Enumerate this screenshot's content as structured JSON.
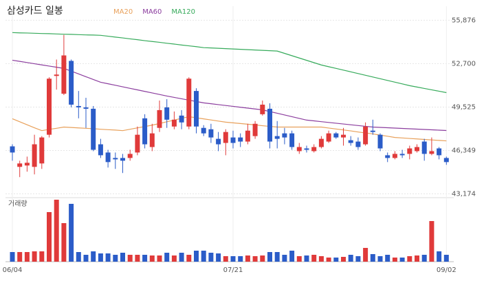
{
  "chart_data": {
    "type": "candlestick",
    "title": "삼성카드 일봉",
    "volume_label": "거래량",
    "up_color": "#e03a3a",
    "down_color": "#2b5cc8",
    "categories": [
      "06/04",
      null,
      null,
      null,
      null,
      null,
      null,
      null,
      null,
      null,
      null,
      null,
      null,
      null,
      null,
      null,
      null,
      null,
      null,
      null,
      null,
      null,
      null,
      null,
      null,
      null,
      null,
      null,
      null,
      null,
      "07/21",
      null,
      null,
      null,
      null,
      null,
      null,
      null,
      null,
      null,
      null,
      null,
      null,
      null,
      null,
      null,
      null,
      null,
      null,
      null,
      null,
      null,
      null,
      null,
      null,
      null,
      null,
      null,
      null,
      "09/02"
    ],
    "open": [
      46650,
      45150,
      45250,
      45150,
      45400,
      47500,
      51800,
      50500,
      52900,
      49600,
      49500,
      49400,
      46800,
      46200,
      45800,
      45800,
      45800,
      46200,
      48700,
      46600,
      48000,
      49500,
      48100,
      48900,
      48100,
      50700,
      48000,
      47900,
      47200,
      46900,
      47300,
      47300,
      47000,
      47400,
      49000,
      49400,
      47400,
      47600,
      47600,
      46300,
      46500,
      46300,
      46600,
      47000,
      47600,
      47300,
      47100,
      47000,
      46800,
      47800,
      47500,
      46000,
      45800,
      46100,
      46100,
      46300,
      47000,
      46100,
      46500,
      45800
    ],
    "high": [
      46800,
      45600,
      45900,
      47500,
      47400,
      51700,
      53000,
      54800,
      53000,
      50700,
      50200,
      49600,
      47200,
      46400,
      46200,
      46100,
      46400,
      48100,
      49000,
      48300,
      50000,
      50100,
      49200,
      49300,
      51700,
      50900,
      48200,
      48300,
      47700,
      47900,
      47800,
      47600,
      48300,
      48500,
      50000,
      49800,
      48500,
      48000,
      47800,
      46900,
      46700,
      46800,
      47400,
      47800,
      47700,
      48000,
      47400,
      47300,
      48400,
      48600,
      47600,
      46200,
      46300,
      46400,
      46700,
      46800,
      47200,
      47300,
      46600,
      45900
    ],
    "low": [
      45600,
      44400,
      44800,
      44600,
      45000,
      47300,
      50800,
      50400,
      49500,
      48700,
      48000,
      46300,
      45800,
      45100,
      45000,
      44700,
      45600,
      46000,
      46500,
      46300,
      47700,
      48000,
      47900,
      47900,
      47900,
      47600,
      47400,
      46900,
      46300,
      46000,
      46500,
      46600,
      46800,
      47200,
      48900,
      46500,
      46500,
      46800,
      46400,
      46100,
      46200,
      46200,
      46500,
      46900,
      47200,
      46700,
      46700,
      46400,
      46700,
      47500,
      46300,
      45500,
      45700,
      45800,
      45700,
      46200,
      45600,
      46000,
      45700,
      45300
    ],
    "close": [
      46200,
      45400,
      45450,
      46800,
      47300,
      51600,
      51900,
      53300,
      49700,
      49500,
      49400,
      46400,
      46000,
      45500,
      45700,
      45600,
      46100,
      47500,
      46800,
      47600,
      49300,
      48600,
      48600,
      48400,
      51600,
      48100,
      47600,
      47300,
      46800,
      47700,
      46900,
      47000,
      47800,
      48300,
      49700,
      47000,
      47200,
      47300,
      46600,
      46600,
      46400,
      46600,
      47200,
      47600,
      47300,
      47500,
      46900,
      46600,
      48100,
      47700,
      46500,
      45800,
      46100,
      46000,
      46500,
      46600,
      46100,
      46300,
      46000,
      45500
    ],
    "volume": [
      14,
      14,
      14,
      15,
      15,
      72,
      90,
      56,
      84,
      14,
      10,
      15,
      12,
      12,
      10,
      13,
      10,
      10,
      10,
      9,
      9,
      13,
      9,
      13,
      10,
      16,
      16,
      13,
      12,
      8,
      8,
      8,
      9,
      8,
      9,
      14,
      14,
      10,
      16,
      8,
      9,
      10,
      8,
      6,
      6,
      7,
      10,
      8,
      20,
      11,
      8,
      10,
      6,
      6,
      8,
      9,
      10,
      59,
      15,
      10
    ],
    "series": [
      {
        "name": "MA20",
        "color": "#e8a05a",
        "values": [
          48670,
          48450,
          48230,
          48010,
          47800,
          47890,
          47970,
          48060,
          48030,
          48000,
          47970,
          47940,
          47900,
          47870,
          47840,
          47800,
          47900,
          48000,
          48100,
          48200,
          48320,
          48450,
          48570,
          48700,
          48820,
          48740,
          48660,
          48580,
          48500,
          48420,
          48370,
          48320,
          48270,
          48220,
          48160,
          48110,
          48060,
          48060,
          48060,
          48060,
          48060,
          48060,
          48060,
          47990,
          47920,
          47850,
          47780,
          47700,
          47630,
          47560,
          47470,
          47390,
          47300,
          47264,
          47228,
          47192,
          47156,
          47120,
          47084,
          47050
        ]
      },
      {
        "name": "MA60",
        "color": "#8b3d9e",
        "values": [
          52950,
          52864,
          52779,
          52693,
          52607,
          52521,
          52436,
          52350,
          52148,
          51946,
          51744,
          51542,
          51340,
          51228,
          51116,
          51004,
          50892,
          50780,
          50668,
          50556,
          50444,
          50330,
          50230,
          50130,
          50030,
          49930,
          49830,
          49766,
          49702,
          49638,
          49574,
          49510,
          49446,
          49382,
          49320,
          49195,
          49070,
          48945,
          48820,
          48695,
          48570,
          48513,
          48456,
          48399,
          48342,
          48285,
          48228,
          48171,
          48114,
          48060,
          48035,
          48010,
          47985,
          47960,
          47935,
          47910,
          47885,
          47860,
          47835,
          47810
        ]
      },
      {
        "name": "MA120",
        "color": "#35aa5a",
        "values": [
          54970,
          54950,
          54940,
          54920,
          54900,
          54890,
          54870,
          54850,
          54840,
          54820,
          54800,
          54790,
          54770,
          54706,
          54640,
          54580,
          54510,
          54450,
          54380,
          54320,
          54260,
          54190,
          54130,
          54060,
          54000,
          53940,
          53870,
          53845,
          53820,
          53795,
          53770,
          53745,
          53720,
          53695,
          53670,
          53645,
          53620,
          53450,
          53280,
          53110,
          52940,
          52770,
          52600,
          52475,
          52350,
          52225,
          52100,
          51975,
          51850,
          51723,
          51597,
          51470,
          51343,
          51217,
          51090,
          50988,
          50886,
          50784,
          50682,
          50580
        ]
      }
    ],
    "ylim": [
      43000,
      56900
    ],
    "yticks": [
      {
        "value": 43174,
        "label": "43,174"
      },
      {
        "value": 46349,
        "label": "46,349"
      },
      {
        "value": 49525,
        "label": "49,525"
      },
      {
        "value": 52700,
        "label": "52,700"
      },
      {
        "value": 55876,
        "label": "55,876"
      }
    ],
    "grid": true
  }
}
